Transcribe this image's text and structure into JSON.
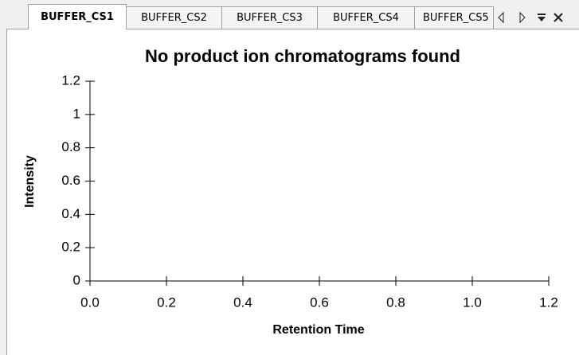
{
  "tabs": [
    "BUFFER_CS1",
    "BUFFER_CS2",
    "BUFFER_CS3",
    "BUFFER_CS4",
    "BUFFER_CS5"
  ],
  "chart_data": {
    "type": "line",
    "title": "No product ion chromatograms found",
    "xlabel": "Retention Time",
    "ylabel": "Intensity",
    "xlim": [
      0,
      1.2
    ],
    "ylim": [
      0,
      1.2
    ],
    "xticks": [
      {
        "value": 0,
        "label": "0.0"
      },
      0.2,
      0.4,
      0.6,
      0.8,
      {
        "value": 1,
        "label": "1.0"
      },
      1.2
    ],
    "yticks": [
      0,
      0.2,
      0.4,
      0.6,
      0.8,
      1,
      1.2
    ],
    "series": []
  }
}
